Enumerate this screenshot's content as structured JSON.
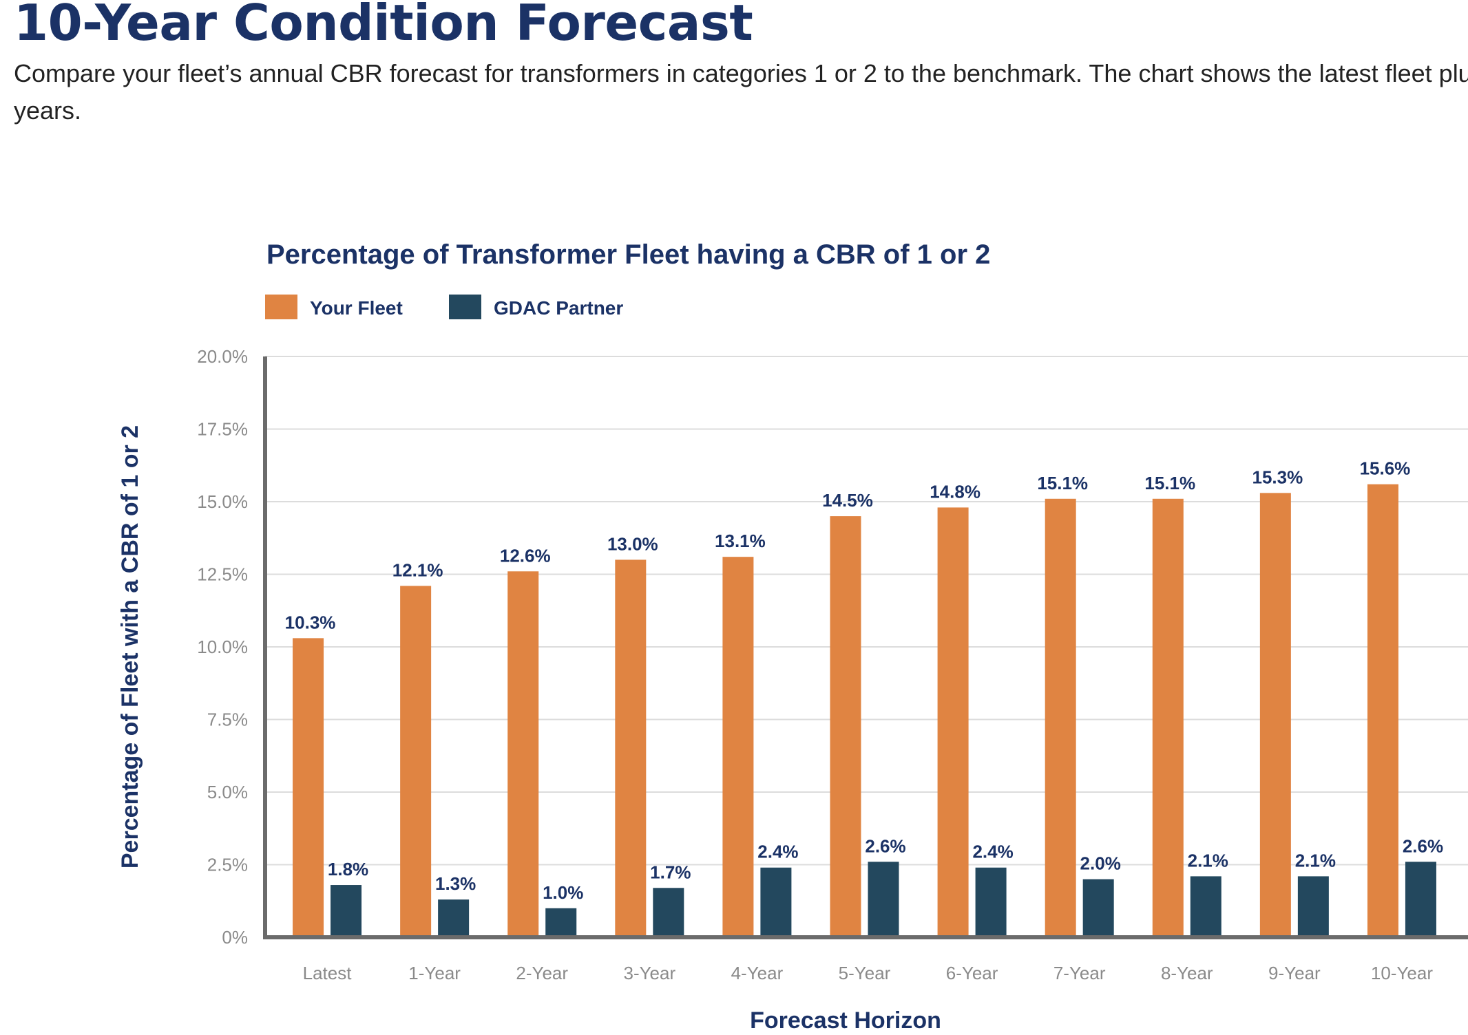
{
  "page": {
    "heading": "10-Year Condition Forecast",
    "description": "Compare your fleet’s annual CBR forecast for transformers in categories 1 or 2 to the benchmark. The chart shows the latest fleet plus years."
  },
  "chart_data": {
    "type": "bar",
    "title": "Percentage of Transformer Fleet having a CBR of 1 or 2",
    "xlabel": "Forecast Horizon",
    "ylabel": "Percentage of Fleet with a CBR of 1 or 2",
    "categories": [
      "Latest",
      "1-Year",
      "2-Year",
      "3-Year",
      "4-Year",
      "5-Year",
      "6-Year",
      "7-Year",
      "8-Year",
      "9-Year",
      "10-Year"
    ],
    "series": [
      {
        "name": "Your Fleet",
        "color": "#e08442",
        "values": [
          10.3,
          12.1,
          12.6,
          13.0,
          13.1,
          14.5,
          14.8,
          15.1,
          15.1,
          15.3,
          15.6
        ],
        "labels": [
          "10.3%",
          "12.1%",
          "12.6%",
          "13.0%",
          "13.1%",
          "14.5%",
          "14.8%",
          "15.1%",
          "15.1%",
          "15.3%",
          "15.6%"
        ]
      },
      {
        "name": "GDAC Partner",
        "color": "#23485e",
        "values": [
          1.8,
          1.3,
          1.0,
          1.7,
          2.4,
          2.6,
          2.4,
          2.0,
          2.1,
          2.1,
          2.6
        ],
        "labels": [
          "1.8%",
          "1.3%",
          "1.0%",
          "1.7%",
          "2.4%",
          "2.6%",
          "2.4%",
          "2.0%",
          "2.1%",
          "2.1%",
          "2.6%"
        ]
      }
    ],
    "ylim": [
      0,
      20
    ],
    "yticks": [
      "0%",
      "2.5%",
      "5.0%",
      "7.5%",
      "10.0%",
      "12.5%",
      "15.0%",
      "17.5%",
      "20.0%"
    ],
    "grid": true,
    "legend_position": "top-left"
  }
}
